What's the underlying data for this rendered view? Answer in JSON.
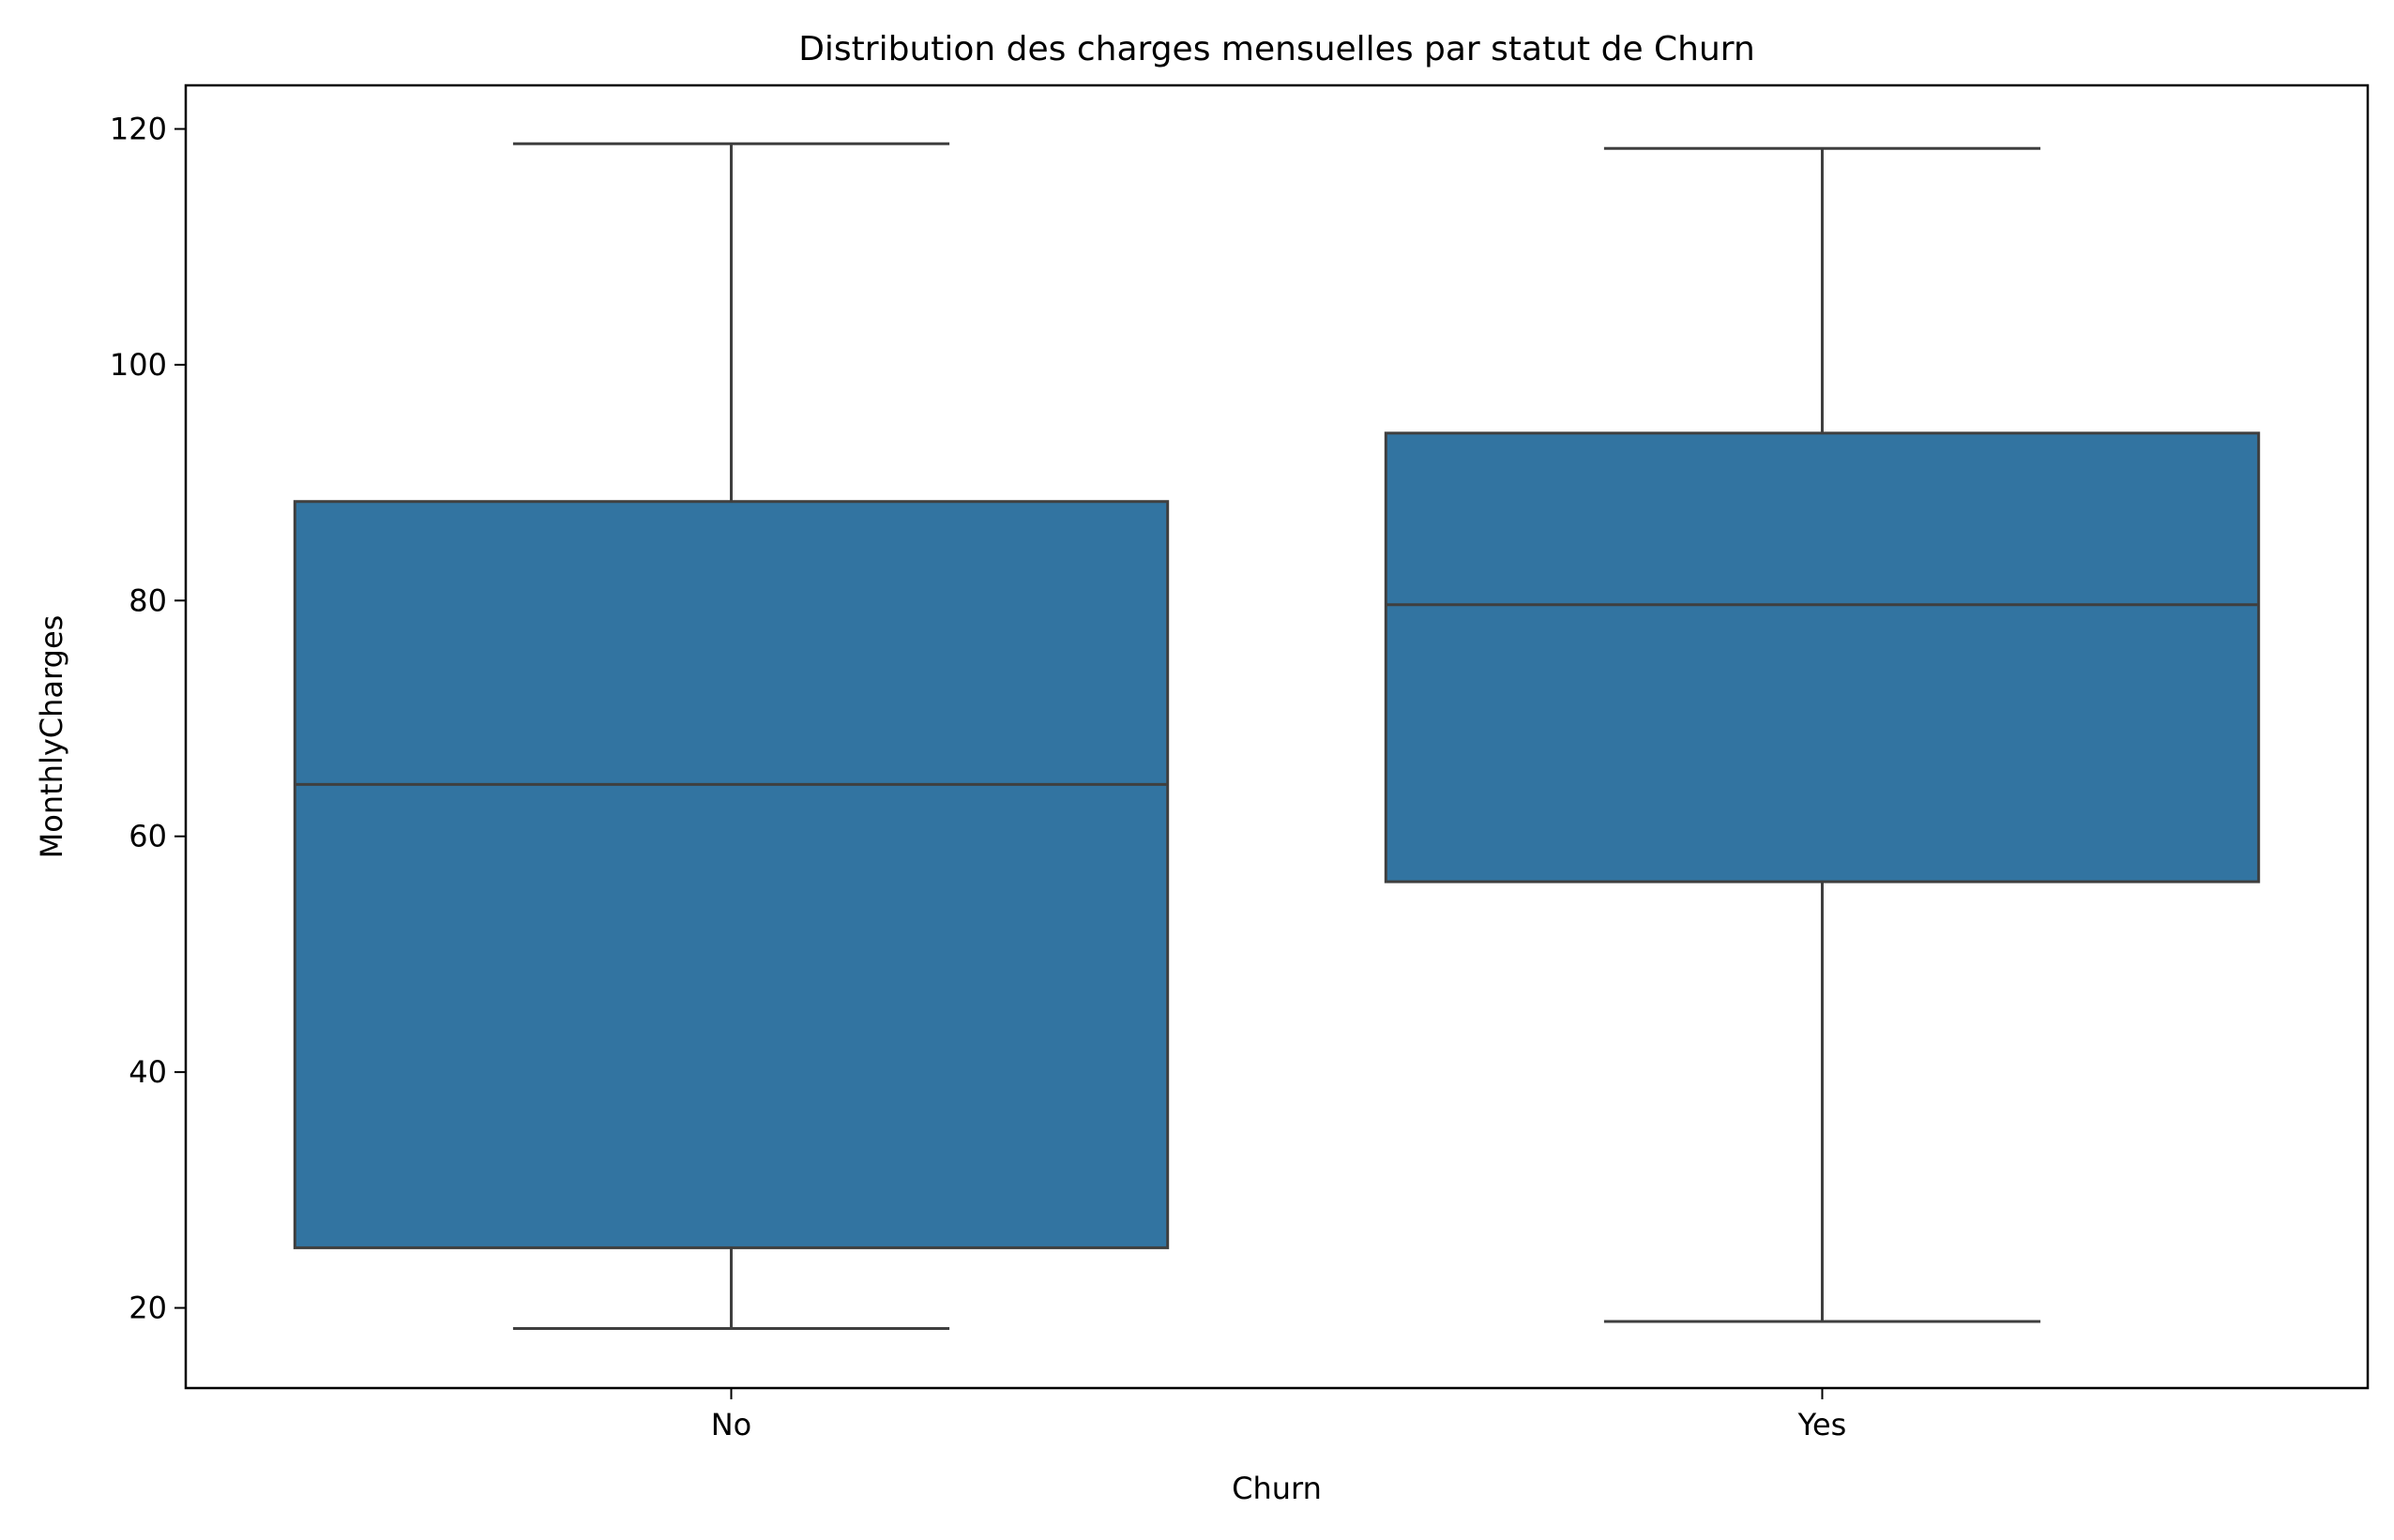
{
  "chart_data": {
    "type": "box",
    "title": "Distribution des charges mensuelles par statut de Churn",
    "xlabel": "Churn",
    "ylabel": "MonthlyCharges",
    "ylim": [
      13.2,
      123.7
    ],
    "yticks": [
      20,
      40,
      60,
      80,
      100,
      120
    ],
    "categories": [
      "No",
      "Yes"
    ],
    "boxes": [
      {
        "category": "No",
        "whisker_low": 18.25,
        "q1": 25.1,
        "median": 64.4,
        "q3": 88.4,
        "whisker_high": 118.75
      },
      {
        "category": "Yes",
        "whisker_low": 18.85,
        "q1": 56.15,
        "median": 79.65,
        "q3": 94.2,
        "whisker_high": 118.35
      }
    ],
    "grid": false,
    "colors": {
      "box_fill": "#3274a1",
      "line": "#3f3f3f",
      "axes": "#000000"
    }
  }
}
